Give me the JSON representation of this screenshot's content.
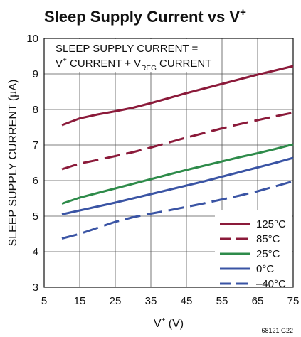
{
  "chart_data": {
    "type": "line",
    "title": {
      "main": "Sleep Supply Current vs V",
      "sup": "+"
    },
    "xlabel": {
      "main": "V",
      "sup": "+",
      "rest": " (V)"
    },
    "ylabel": "SLEEP SUPPLY CURRENT (µA)",
    "xlim": [
      5,
      75
    ],
    "ylim": [
      3,
      10
    ],
    "xticks": [
      5,
      15,
      25,
      35,
      45,
      55,
      65,
      75
    ],
    "yticks": [
      3,
      4,
      5,
      6,
      7,
      8,
      9,
      10
    ],
    "grid": true,
    "legend_position": "bottom-right",
    "annotation": {
      "line1": "SLEEP SUPPLY CURRENT =",
      "line2": {
        "v": "V",
        "vsup": "+",
        "mid": " CURRENT + V",
        "sub": "REG",
        "end": " CURRENT"
      }
    },
    "figure_id": "68121 G22",
    "series": [
      {
        "name": "125°C",
        "color": "#8b1a3a",
        "dash": "solid",
        "x": [
          10,
          15,
          20,
          25,
          30,
          35,
          40,
          45,
          50,
          55,
          60,
          65,
          70,
          75
        ],
        "y": [
          7.56,
          7.75,
          7.86,
          7.95,
          8.05,
          8.18,
          8.32,
          8.46,
          8.59,
          8.72,
          8.85,
          8.98,
          9.1,
          9.22
        ]
      },
      {
        "name": "85°C",
        "color": "#8b1a3a",
        "dash": "dashed",
        "x": [
          10,
          15,
          20,
          25,
          30,
          35,
          40,
          45,
          50,
          55,
          60,
          65,
          70,
          75
        ],
        "y": [
          6.32,
          6.48,
          6.58,
          6.69,
          6.8,
          6.93,
          7.07,
          7.21,
          7.34,
          7.47,
          7.59,
          7.7,
          7.81,
          7.91
        ]
      },
      {
        "name": "25°C",
        "color": "#2e8b4a",
        "dash": "solid",
        "x": [
          10,
          15,
          20,
          25,
          30,
          35,
          40,
          45,
          50,
          55,
          60,
          65,
          70,
          75
        ],
        "y": [
          5.35,
          5.52,
          5.65,
          5.78,
          5.91,
          6.04,
          6.17,
          6.3,
          6.42,
          6.54,
          6.66,
          6.77,
          6.89,
          7.02
        ]
      },
      {
        "name": "0°C",
        "color": "#3a54a4",
        "dash": "solid",
        "x": [
          10,
          15,
          20,
          25,
          30,
          35,
          40,
          45,
          50,
          55,
          60,
          65,
          70,
          75
        ],
        "y": [
          5.05,
          5.16,
          5.27,
          5.38,
          5.5,
          5.62,
          5.74,
          5.86,
          5.98,
          6.11,
          6.24,
          6.37,
          6.5,
          6.64
        ]
      },
      {
        "name": "–40°C",
        "color": "#3a54a4",
        "dash": "dashed",
        "x": [
          10,
          15,
          20,
          25,
          30,
          35,
          40,
          45,
          50,
          55,
          60,
          65,
          70,
          75
        ],
        "y": [
          4.37,
          4.5,
          4.67,
          4.84,
          4.97,
          5.07,
          5.16,
          5.26,
          5.36,
          5.47,
          5.58,
          5.7,
          5.84,
          5.98
        ]
      }
    ]
  }
}
